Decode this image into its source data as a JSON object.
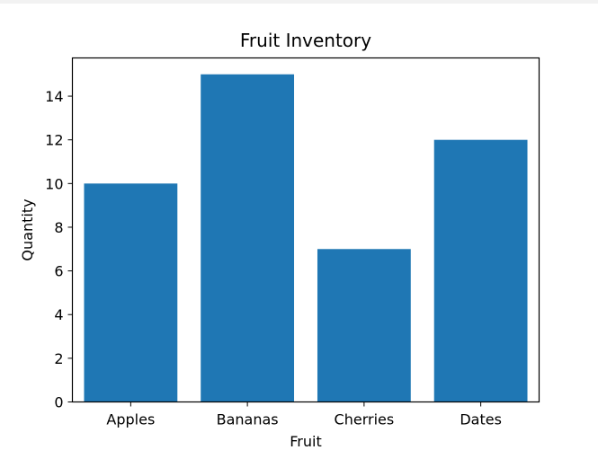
{
  "chart_data": {
    "type": "bar",
    "title": "Fruit Inventory",
    "xlabel": "Fruit",
    "ylabel": "Quantity",
    "categories": [
      "Apples",
      "Bananas",
      "Cherries",
      "Dates"
    ],
    "values": [
      10,
      15,
      7,
      12
    ],
    "ylim": [
      0,
      15.75
    ],
    "yticks": [
      0,
      2,
      4,
      6,
      8,
      10,
      12,
      14
    ],
    "bar_color": "#1f77b4",
    "grid": false,
    "legend": "none"
  }
}
